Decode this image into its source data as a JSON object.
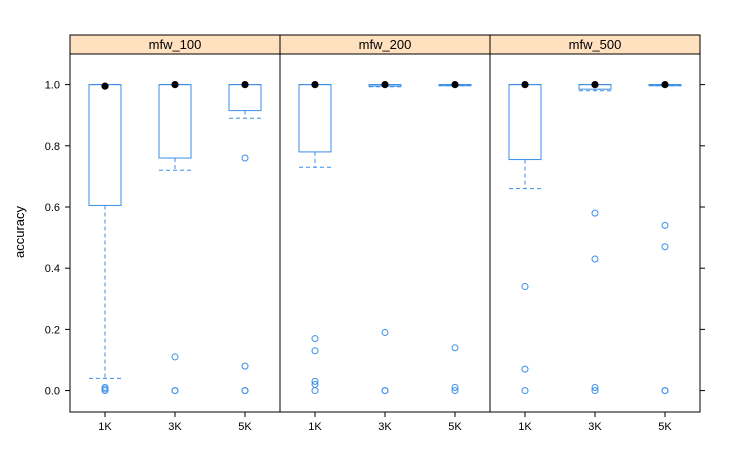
{
  "chart_data": {
    "type": "boxplot",
    "ylabel": "accuracy",
    "xlabel": "",
    "ylim": [
      -0.07,
      1.1
    ],
    "yticks": [
      0.0,
      0.2,
      0.4,
      0.6,
      0.8,
      1.0
    ],
    "ytick_labels": [
      "0.0",
      "0.2",
      "0.4",
      "0.6",
      "0.8",
      "1.0"
    ],
    "categories": [
      "1K",
      "3K",
      "5K"
    ],
    "strip_color": "#ffe0bf",
    "box_color": "#3b8ee8",
    "panels": [
      {
        "title": "mfw_100",
        "boxes": [
          {
            "category": "1K",
            "whisker_low": 0.04,
            "q1": 0.605,
            "median": 0.995,
            "q3": 1.0,
            "whisker_high": 1.0,
            "outliers": [
              0.01,
              0.005,
              0.0
            ]
          },
          {
            "category": "3K",
            "whisker_low": 0.72,
            "q1": 0.76,
            "median": 1.0,
            "q3": 1.0,
            "whisker_high": 1.0,
            "outliers": [
              0.11,
              0.0,
              0.0
            ]
          },
          {
            "category": "5K",
            "whisker_low": 0.89,
            "q1": 0.915,
            "median": 1.0,
            "q3": 1.0,
            "whisker_high": 1.0,
            "outliers": [
              0.76,
              0.08,
              0.0,
              0.0
            ]
          }
        ]
      },
      {
        "title": "mfw_200",
        "boxes": [
          {
            "category": "1K",
            "whisker_low": 0.73,
            "q1": 0.78,
            "median": 1.0,
            "q3": 1.0,
            "whisker_high": 1.0,
            "outliers": [
              0.17,
              0.13,
              0.03,
              0.02,
              0.0
            ]
          },
          {
            "category": "3K",
            "whisker_low": 0.993,
            "q1": 0.995,
            "median": 1.0,
            "q3": 1.0,
            "whisker_high": 1.0,
            "outliers": [
              0.19,
              0.0,
              0.0
            ]
          },
          {
            "category": "5K",
            "whisker_low": 0.998,
            "q1": 1.0,
            "median": 1.0,
            "q3": 1.0,
            "whisker_high": 1.0,
            "outliers": [
              0.14,
              0.01,
              0.0
            ]
          }
        ]
      },
      {
        "title": "mfw_500",
        "boxes": [
          {
            "category": "1K",
            "whisker_low": 0.66,
            "q1": 0.755,
            "median": 1.0,
            "q3": 1.0,
            "whisker_high": 1.0,
            "outliers": [
              0.34,
              0.07,
              0.0
            ]
          },
          {
            "category": "3K",
            "whisker_low": 0.98,
            "q1": 0.985,
            "median": 1.0,
            "q3": 1.0,
            "whisker_high": 1.0,
            "outliers": [
              0.58,
              0.43,
              0.01,
              0.0
            ]
          },
          {
            "category": "5K",
            "whisker_low": 0.998,
            "q1": 1.0,
            "median": 1.0,
            "q3": 1.0,
            "whisker_high": 1.0,
            "outliers": [
              0.54,
              0.47,
              0.0,
              0.0
            ]
          }
        ]
      }
    ]
  }
}
